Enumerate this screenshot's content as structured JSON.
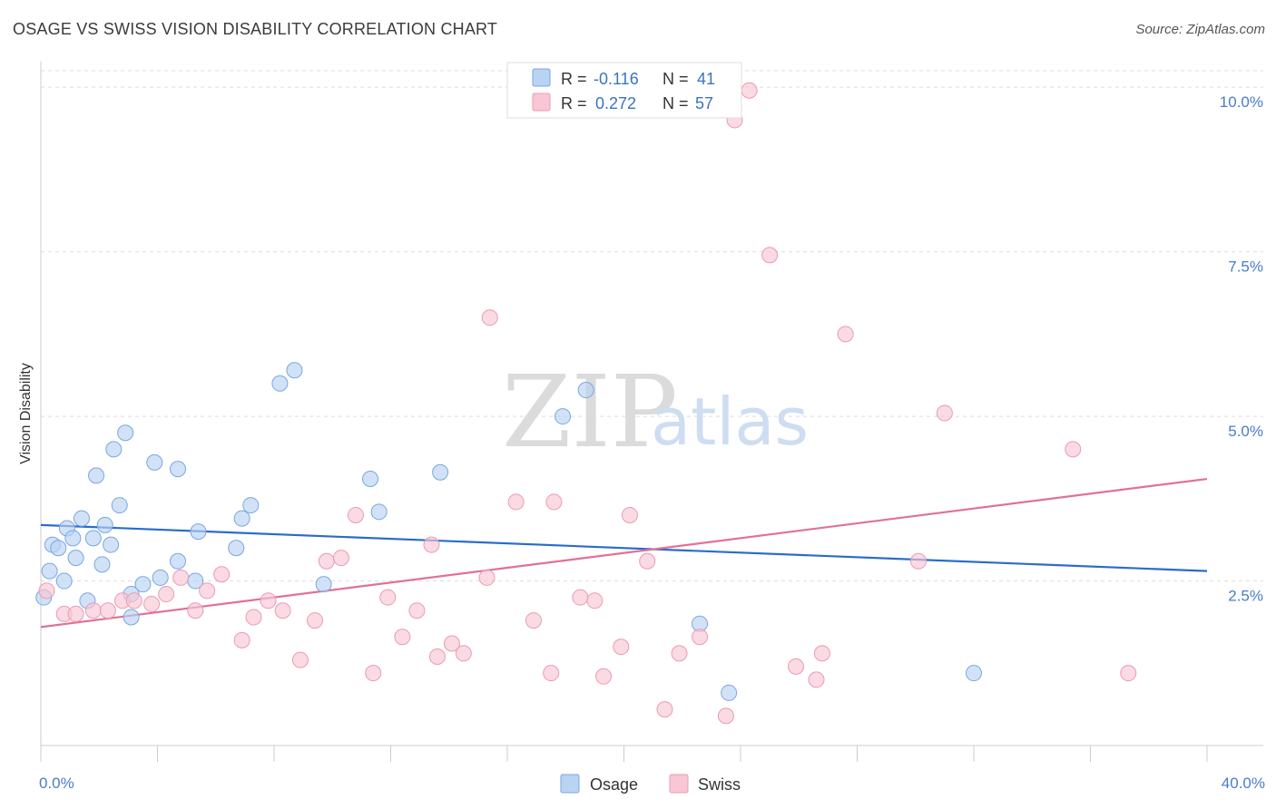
{
  "title": "OSAGE VS SWISS VISION DISABILITY CORRELATION CHART",
  "source": "Source: ZipAtlas.com",
  "watermark": {
    "zip": "ZIP",
    "atlas": "atlas"
  },
  "colors": {
    "osage_fill": "#b9d3f3",
    "osage_stroke": "#7aa6e0",
    "osage_line": "#2a6ccc",
    "swiss_fill": "#f8c6d4",
    "swiss_stroke": "#ec9ab3",
    "swiss_line": "#e0709a",
    "grid": "#dddddd",
    "axis_label": "#4a7cc9"
  },
  "legend": {
    "rows": [
      {
        "r_label": "R =",
        "r_value": "-0.116",
        "n_label": "N =",
        "n_value": "41"
      },
      {
        "r_label": "R =",
        "r_value": "0.272",
        "n_label": "N =",
        "n_value": "57"
      }
    ]
  },
  "chart_data": {
    "type": "scatter",
    "title": "OSAGE VS SWISS VISION DISABILITY CORRELATION CHART",
    "xlabel": "",
    "ylabel": "Vision Disability",
    "xlim": [
      0,
      40
    ],
    "ylim": [
      0,
      10.25
    ],
    "x_tick_labels": [
      "0.0%",
      "40.0%"
    ],
    "y_ticks": [
      2.5,
      5.0,
      7.5,
      10.0
    ],
    "y_tick_labels": [
      "2.5%",
      "5.0%",
      "7.5%",
      "10.0%"
    ],
    "grid": true,
    "legend_position": "top-center",
    "series": [
      {
        "name": "Osage",
        "trend": {
          "x": [
            0,
            40
          ],
          "y": [
            3.35,
            2.65
          ]
        },
        "points": [
          [
            0.1,
            2.25
          ],
          [
            0.3,
            2.65
          ],
          [
            0.4,
            3.05
          ],
          [
            0.6,
            3.0
          ],
          [
            0.8,
            2.5
          ],
          [
            0.9,
            3.3
          ],
          [
            1.1,
            3.15
          ],
          [
            1.2,
            2.85
          ],
          [
            1.4,
            3.45
          ],
          [
            1.6,
            2.2
          ],
          [
            1.8,
            3.15
          ],
          [
            1.9,
            4.1
          ],
          [
            2.1,
            2.75
          ],
          [
            2.2,
            3.35
          ],
          [
            2.4,
            3.05
          ],
          [
            2.5,
            4.5
          ],
          [
            2.7,
            3.65
          ],
          [
            2.9,
            4.75
          ],
          [
            3.1,
            2.3
          ],
          [
            3.1,
            1.95
          ],
          [
            3.5,
            2.45
          ],
          [
            3.9,
            4.3
          ],
          [
            4.1,
            2.55
          ],
          [
            4.7,
            2.8
          ],
          [
            4.7,
            4.2
          ],
          [
            5.3,
            2.5
          ],
          [
            5.4,
            3.25
          ],
          [
            6.7,
            3.0
          ],
          [
            6.9,
            3.45
          ],
          [
            7.2,
            3.65
          ],
          [
            8.2,
            5.5
          ],
          [
            8.7,
            5.7
          ],
          [
            9.7,
            2.45
          ],
          [
            11.3,
            4.05
          ],
          [
            11.6,
            3.55
          ],
          [
            13.7,
            4.15
          ],
          [
            17.9,
            5.0
          ],
          [
            18.7,
            5.4
          ],
          [
            22.6,
            1.85
          ],
          [
            23.6,
            0.8
          ],
          [
            32.0,
            1.1
          ]
        ]
      },
      {
        "name": "Swiss",
        "trend": {
          "x": [
            0,
            40
          ],
          "y": [
            1.8,
            4.05
          ]
        },
        "points": [
          [
            0.2,
            2.35
          ],
          [
            0.8,
            2.0
          ],
          [
            1.2,
            2.0
          ],
          [
            1.8,
            2.05
          ],
          [
            2.3,
            2.05
          ],
          [
            2.8,
            2.2
          ],
          [
            3.2,
            2.2
          ],
          [
            3.8,
            2.15
          ],
          [
            4.3,
            2.3
          ],
          [
            4.8,
            2.55
          ],
          [
            5.3,
            2.05
          ],
          [
            5.7,
            2.35
          ],
          [
            6.2,
            2.6
          ],
          [
            6.9,
            1.6
          ],
          [
            7.3,
            1.95
          ],
          [
            7.8,
            2.2
          ],
          [
            8.3,
            2.05
          ],
          [
            8.9,
            1.3
          ],
          [
            9.4,
            1.9
          ],
          [
            9.8,
            2.8
          ],
          [
            10.3,
            2.85
          ],
          [
            10.8,
            3.5
          ],
          [
            11.4,
            1.1
          ],
          [
            11.9,
            2.25
          ],
          [
            12.4,
            1.65
          ],
          [
            12.9,
            2.05
          ],
          [
            13.4,
            3.05
          ],
          [
            13.6,
            1.35
          ],
          [
            14.1,
            1.55
          ],
          [
            14.5,
            1.4
          ],
          [
            15.3,
            2.55
          ],
          [
            15.4,
            6.5
          ],
          [
            16.3,
            3.7
          ],
          [
            16.9,
            1.9
          ],
          [
            17.5,
            1.1
          ],
          [
            17.6,
            3.7
          ],
          [
            18.5,
            2.25
          ],
          [
            19.0,
            2.2
          ],
          [
            19.3,
            1.05
          ],
          [
            19.9,
            1.5
          ],
          [
            20.2,
            3.5
          ],
          [
            20.8,
            2.8
          ],
          [
            21.4,
            0.55
          ],
          [
            21.9,
            1.4
          ],
          [
            22.6,
            1.65
          ],
          [
            23.5,
            0.45
          ],
          [
            23.8,
            9.5
          ],
          [
            24.3,
            9.95
          ],
          [
            25.0,
            7.45
          ],
          [
            25.9,
            1.2
          ],
          [
            26.6,
            1.0
          ],
          [
            26.8,
            1.4
          ],
          [
            27.6,
            6.25
          ],
          [
            30.1,
            2.8
          ],
          [
            31.0,
            5.05
          ],
          [
            35.4,
            4.5
          ],
          [
            37.3,
            1.1
          ]
        ]
      }
    ]
  },
  "bottom_legend": {
    "items": [
      "Osage",
      "Swiss"
    ]
  }
}
